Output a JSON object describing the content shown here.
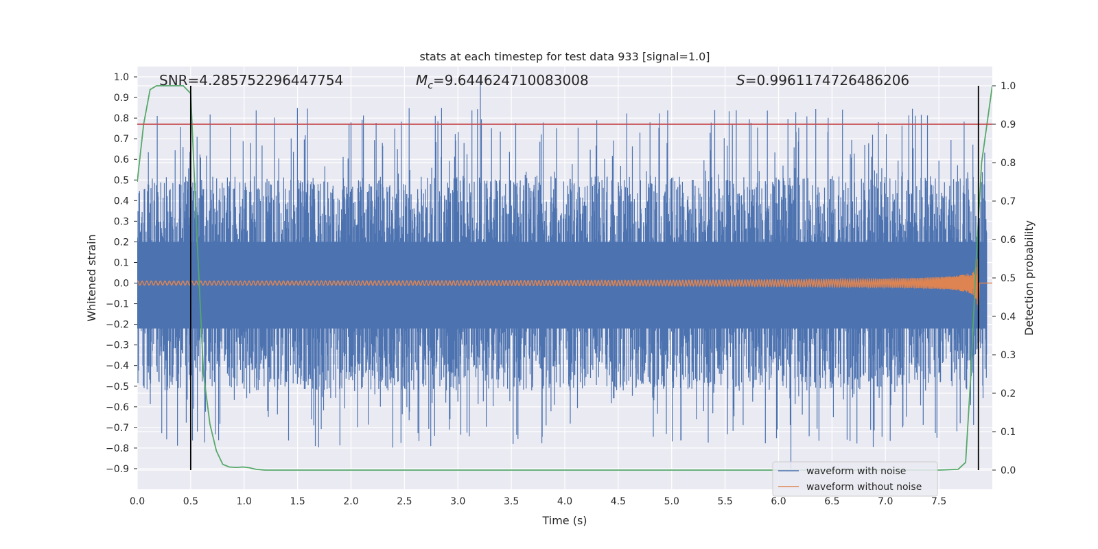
{
  "chart_data": {
    "type": "line",
    "title": "stats at each timestep for test data 933 [signal=1.0]",
    "xlabel": "Time (s)",
    "ylabel": "Whitened strain",
    "y2label": "Detection probability",
    "xlim": [
      0.0,
      8.0
    ],
    "ylim": [
      -1.0,
      1.05
    ],
    "y2lim": [
      -0.05,
      1.05
    ],
    "x_ticks": [
      "0.0",
      "0.5",
      "1.0",
      "1.5",
      "2.0",
      "2.5",
      "3.0",
      "3.5",
      "4.0",
      "4.5",
      "5.0",
      "5.5",
      "6.0",
      "6.5",
      "7.0",
      "7.5"
    ],
    "y_ticks": [
      "1.0",
      "0.9",
      "0.8",
      "0.7",
      "0.6",
      "0.5",
      "0.4",
      "0.3",
      "0.2",
      "0.1",
      "0.0",
      "−0.1",
      "−0.2",
      "−0.3",
      "−0.4",
      "−0.5",
      "−0.6",
      "−0.7",
      "−0.8",
      "−0.9"
    ],
    "y2_ticks": [
      "1.0",
      "0.9",
      "0.8",
      "0.7",
      "0.6",
      "0.5",
      "0.4",
      "0.3",
      "0.2",
      "0.1",
      "0.0"
    ],
    "annotations": {
      "snr": "SNR=4.285752296447754",
      "mc_symbol": "M",
      "mc_sub": "c",
      "mc_value": "=9.644624710083008",
      "s_symbol": "S",
      "s_value": "=0.9961174726486206"
    },
    "threshold": 0.9,
    "vlines": [
      0.5,
      7.87
    ],
    "grid": true,
    "legend_position": "lower right",
    "series": [
      {
        "name": "waveform with noise",
        "color": "#4c72b0",
        "envelope_upper": 0.35,
        "envelope_lower": -0.35,
        "max_peak": 0.99,
        "min_peak": -0.9
      },
      {
        "name": "waveform without noise",
        "color": "#dd8452",
        "chirp_start": 0.0,
        "chirp_end": 7.87,
        "amplitude_start": 0.01,
        "amplitude_end": 0.15
      },
      {
        "color": "#55a868",
        "x": [
          0.0,
          0.06,
          0.12,
          0.18,
          0.25,
          0.31,
          0.37,
          0.43,
          0.5,
          0.56,
          0.62,
          0.68,
          0.74,
          0.8,
          0.86,
          0.93,
          0.99,
          1.05,
          1.11,
          1.2,
          1.5,
          2.0,
          3.0,
          4.0,
          5.0,
          6.0,
          7.0,
          7.5,
          7.68,
          7.75,
          7.8,
          7.85,
          7.9,
          8.0
        ],
        "y": [
          0.75,
          0.9,
          0.99,
          1.0,
          1.0,
          1.0,
          1.0,
          1.0,
          0.98,
          0.6,
          0.25,
          0.12,
          0.05,
          0.015,
          0.008,
          0.007,
          0.008,
          0.006,
          0.002,
          0.0,
          0.0,
          0.0,
          0.0,
          0.0,
          0.0,
          0.0,
          0.0,
          0.0,
          0.002,
          0.02,
          0.25,
          0.55,
          0.8,
          1.0
        ]
      }
    ],
    "threshold_color": "#c44e52",
    "vline_color": "#000000"
  }
}
